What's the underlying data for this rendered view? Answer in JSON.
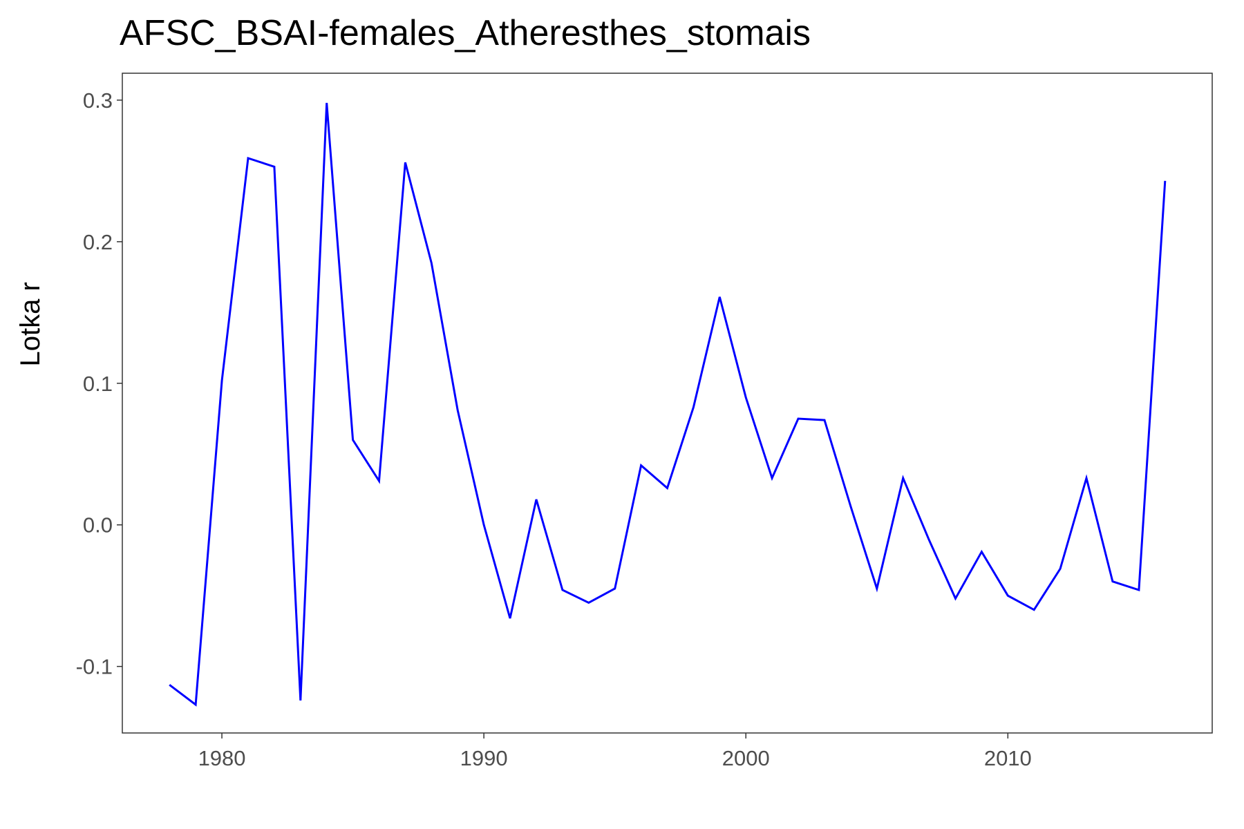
{
  "chart_data": {
    "type": "line",
    "title": "AFSC_BSAI-females_Atheresthes_stomais",
    "xlabel": "",
    "ylabel": "Lotka r",
    "xlim": [
      1976.2,
      2017.8
    ],
    "ylim": [
      -0.147,
      0.319
    ],
    "x_ticks": [
      1980,
      1990,
      2000,
      2010
    ],
    "x_tick_labels": [
      "1980",
      "1990",
      "2000",
      "2010"
    ],
    "y_ticks": [
      -0.1,
      0.0,
      0.1,
      0.2,
      0.3
    ],
    "y_tick_labels": [
      "-0.1",
      "0.0",
      "0.1",
      "0.2",
      "0.3"
    ],
    "grid": false,
    "series": [
      {
        "color": "#0000ff",
        "x": [
          1978,
          1979,
          1980,
          1981,
          1982,
          1983,
          1984,
          1985,
          1986,
          1987,
          1988,
          1989,
          1990,
          1991,
          1992,
          1993,
          1994,
          1995,
          1996,
          1997,
          1998,
          1999,
          2000,
          2001,
          2002,
          2003,
          2004,
          2005,
          2006,
          2007,
          2008,
          2009,
          2010,
          2011,
          2012,
          2013,
          2014,
          2015,
          2016
        ],
        "y": [
          -0.113,
          -0.127,
          0.102,
          0.259,
          0.253,
          -0.124,
          0.298,
          0.06,
          0.031,
          0.256,
          0.185,
          0.081,
          0.0,
          -0.066,
          0.018,
          -0.046,
          -0.055,
          -0.045,
          0.042,
          0.026,
          0.083,
          0.161,
          0.09,
          0.033,
          0.075,
          0.074,
          0.013,
          -0.045,
          0.033,
          -0.011,
          -0.052,
          -0.019,
          -0.05,
          -0.06,
          -0.031,
          0.033,
          -0.04,
          -0.046,
          0.243
        ]
      }
    ]
  }
}
